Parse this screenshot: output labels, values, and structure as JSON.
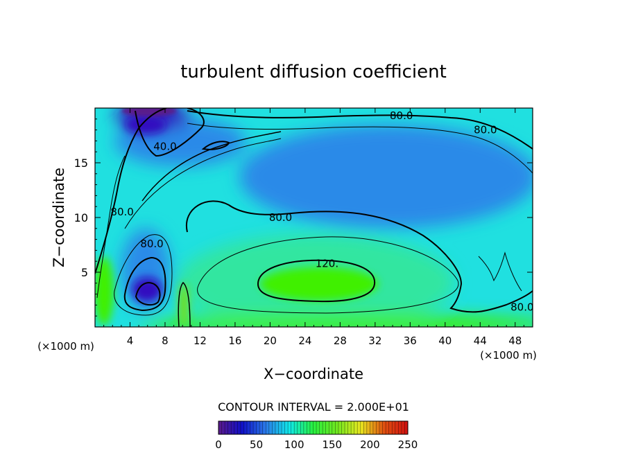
{
  "chart_data": {
    "type": "heatmap",
    "title": "turbulent diffusion coefficient",
    "xlabel": "X−coordinate",
    "ylabel": "Z−coordinate",
    "x_unit_label": "(×1000 m)",
    "z_unit_label": "(×1000 m)",
    "xlim": [
      0,
      50
    ],
    "ylim": [
      0,
      20
    ],
    "x_ticks": [
      4,
      8,
      12,
      16,
      20,
      24,
      28,
      32,
      36,
      40,
      44,
      48
    ],
    "y_ticks": [
      5,
      10,
      15
    ],
    "contour_interval_label": "CONTOUR INTERVAL = 2.000E+01",
    "contour_labels": [
      {
        "text": "80.0",
        "x": 35.0,
        "z": 19.3
      },
      {
        "text": "80.0",
        "x": 44.6,
        "z": 18.0
      },
      {
        "text": "40.0",
        "x": 8.0,
        "z": 16.5
      },
      {
        "text": "80.0",
        "x": 21.2,
        "z": 10.0
      },
      {
        "text": "80.0",
        "x": 3.1,
        "z": 10.5
      },
      {
        "text": "80.0",
        "x": 6.5,
        "z": 7.6
      },
      {
        "text": "120.",
        "x": 26.5,
        "z": 5.8
      },
      {
        "text": "80.0",
        "x": 48.8,
        "z": 1.8
      }
    ],
    "colorbar": {
      "min": 0,
      "max": 250,
      "ticks": [
        0,
        50,
        100,
        150,
        200,
        250
      ],
      "colors": [
        "#5a1a8a",
        "#1010c8",
        "#2a7ae8",
        "#10e8e8",
        "#28f040",
        "#70e820",
        "#e8e820",
        "#e05010",
        "#d01010"
      ]
    },
    "field_colors": {
      "low": "#3010c0",
      "mid_low": "#2a8ae8",
      "mid": "#20e0e0",
      "high": "#40f000",
      "peak": "#70e020"
    }
  }
}
